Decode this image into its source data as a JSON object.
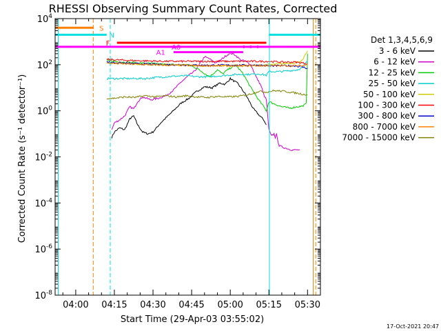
{
  "chart_data": {
    "type": "line",
    "title": "RHESSI Observing Summary Count Rates, Corrected",
    "xlabel": "Start Time (29-Apr-03 03:55:02)",
    "ylabel": "Corrected Count Rate (s⁻¹ detector⁻¹)",
    "x_ticks": [
      "04:00",
      "04:15",
      "04:30",
      "04:45",
      "05:00",
      "05:15",
      "05:30"
    ],
    "x_tick_minutes": [
      5,
      20,
      35,
      50,
      65,
      80,
      95
    ],
    "xlim_minutes": [
      -3,
      100
    ],
    "ylim": [
      1e-08,
      10000.0
    ],
    "yscale": "log",
    "y_ticks": [
      {
        "label": "10",
        "exp": "4",
        "value": 10000.0
      },
      {
        "label": "10",
        "exp": "2",
        "value": 100.0
      },
      {
        "label": "10",
        "exp": "0",
        "value": 1
      },
      {
        "label": "10",
        "exp": "-2",
        "value": 0.01
      },
      {
        "label": "10",
        "exp": "-4",
        "value": 0.0001
      },
      {
        "label": "10",
        "exp": "-6",
        "value": 1e-06
      },
      {
        "label": "10",
        "exp": "-8",
        "value": 1e-08
      }
    ],
    "legend_title": "Det 1,3,4,5,6,9",
    "legend_position": "right",
    "footer_date": "17-Oct-2021 20:47",
    "series": [
      {
        "name": "3 - 6 keV",
        "color": "#000000",
        "x": [
          19,
          20,
          22,
          24,
          26,
          27.5,
          29,
          31,
          33,
          35,
          38,
          42,
          46,
          49,
          52,
          55,
          58,
          61,
          63,
          65,
          68,
          71,
          74,
          76.5,
          78,
          79
        ],
        "y": [
          0.07,
          0.12,
          0.18,
          0.15,
          0.45,
          0.6,
          0.25,
          0.12,
          0.1,
          0.12,
          0.3,
          0.8,
          2.2,
          3.5,
          7,
          11,
          10,
          16,
          14,
          25,
          15,
          5,
          1.2,
          0.6,
          0.4,
          0.25
        ]
      },
      {
        "name": "6 - 12 keV",
        "color": "#cc00cc",
        "x": [
          19,
          20,
          22,
          24,
          26,
          27.5,
          29,
          31,
          34,
          37,
          40,
          43,
          46,
          49,
          51,
          53,
          55,
          57,
          59,
          61,
          63,
          65,
          67,
          69,
          71,
          73,
          75,
          77,
          78,
          79,
          80,
          81,
          82,
          82.5,
          83,
          84,
          86,
          89,
          92
        ],
        "y": [
          0.15,
          0.3,
          0.4,
          0.6,
          1.5,
          1.2,
          2.5,
          4,
          3,
          3.5,
          4.5,
          8,
          18,
          35,
          50,
          100,
          220,
          180,
          120,
          150,
          230,
          320,
          260,
          160,
          140,
          100,
          30,
          12,
          5,
          3,
          0.15,
          0.08,
          0.1,
          0.07,
          0.09,
          0.03,
          0.025,
          0.02,
          0.02
        ]
      },
      {
        "name": "12 - 25 keV",
        "color": "#00cc00",
        "x": [
          17,
          20,
          24,
          28,
          32,
          36,
          40,
          44,
          48,
          51,
          54,
          57,
          60,
          62,
          64,
          67,
          70,
          73,
          76,
          78,
          79,
          80,
          82,
          85,
          88,
          91,
          93,
          94.5,
          95
        ],
        "y": [
          150,
          140,
          130,
          120,
          115,
          110,
          100,
          100,
          100,
          80,
          50,
          30,
          60,
          40,
          60,
          100,
          40,
          10,
          3,
          1.5,
          1,
          2.5,
          2,
          1.5,
          1.3,
          1.5,
          1.6,
          2,
          300
        ]
      },
      {
        "name": "25 - 50 keV",
        "color": "#00cccc",
        "x": [
          17,
          20,
          24,
          28,
          32,
          36,
          40,
          44,
          48,
          52,
          56,
          60,
          64,
          68,
          72,
          76,
          79,
          80,
          84,
          88,
          91,
          93,
          95
        ],
        "y": [
          25,
          25,
          25,
          25,
          25,
          28,
          30,
          32,
          33,
          30,
          30,
          32,
          35,
          38,
          38,
          40,
          35,
          50,
          50,
          55,
          60,
          75,
          150
        ]
      },
      {
        "name": "50 - 100 keV",
        "color": "#cccc00",
        "x": [
          17,
          22,
          28,
          34,
          40,
          46,
          52,
          58,
          64,
          70,
          76,
          80,
          85,
          90,
          93,
          95
        ],
        "y": [
          130,
          120,
          110,
          100,
          100,
          95,
          90,
          90,
          90,
          90,
          95,
          100,
          110,
          120,
          150,
          400
        ]
      },
      {
        "name": "100 - 300 keV",
        "color": "#ff0000",
        "x": [
          17,
          22,
          28,
          34,
          40,
          46,
          52,
          58,
          64,
          70,
          76,
          80,
          85,
          90,
          93,
          95
        ],
        "y": [
          170,
          160,
          150,
          145,
          140,
          140,
          140,
          140,
          140,
          140,
          140,
          140,
          130,
          130,
          120,
          110
        ]
      },
      {
        "name": "300 - 800 keV",
        "color": "#0000cc",
        "x": [
          17,
          22,
          28,
          34,
          40,
          46,
          52,
          58,
          64,
          70,
          76,
          80,
          85,
          90,
          93,
          95
        ],
        "y": [
          130,
          120,
          110,
          105,
          100,
          100,
          95,
          95,
          95,
          95,
          95,
          90,
          90,
          90,
          80,
          70
        ]
      },
      {
        "name": "800 - 7000 keV",
        "color": "#ff8000",
        "x": [
          17,
          22,
          28,
          34,
          40,
          46,
          52,
          58,
          64,
          70,
          76,
          80,
          85,
          90,
          93,
          95
        ],
        "y": [
          115,
          110,
          105,
          100,
          95,
          95,
          90,
          90,
          90,
          90,
          90,
          90,
          90,
          90,
          90,
          100
        ]
      },
      {
        "name": "7000 - 15000 keV",
        "color": "#808000",
        "x": [
          17,
          20,
          24,
          28,
          32,
          36,
          40,
          44,
          48,
          52,
          56,
          60,
          64,
          68,
          72,
          76,
          79,
          82,
          86,
          90,
          94.5,
          95
        ],
        "y": [
          3.5,
          3.5,
          4,
          3.8,
          4.5,
          4,
          4.5,
          4,
          4.5,
          4,
          3.8,
          4.2,
          4,
          4.2,
          5,
          7,
          6.5,
          7.5,
          7,
          6,
          5,
          5
        ]
      }
    ],
    "annotations": [
      {
        "label": "S",
        "color": "#ff8000",
        "x_start": -3,
        "x_end": 12,
        "y": 4000,
        "label_x": 15
      },
      {
        "label": "N",
        "color": "#00e0e0",
        "x_start": -3,
        "x_end": 17,
        "y": 2000,
        "label_x": 19
      },
      {
        "label": "N",
        "color": "#00e0e0",
        "x_start": 80,
        "x_end": 100,
        "y": 2000
      },
      {
        "label": "F",
        "color": "#ff0000",
        "x_start": 21,
        "x_end": 79,
        "y": 900,
        "label_x": 17.5
      },
      {
        "label": "A0",
        "color": "#ff00ff",
        "x_start": -3,
        "x_end": 100,
        "y": 600,
        "label_x": 44
      },
      {
        "label": "A1",
        "color": "#ff00ff",
        "x_start": 43,
        "x_end": 70,
        "y": 350,
        "label_x": 38
      }
    ],
    "vertical_lines": [
      {
        "x": -1.8,
        "color": "#00e0e0",
        "dash": false
      },
      {
        "x": 11.8,
        "color": "#ff8000",
        "dash": true
      },
      {
        "x": 18.4,
        "color": "#00e0e0",
        "dash": true
      },
      {
        "x": 80.2,
        "color": "#00e0e0",
        "dash": false
      },
      {
        "x": 97.2,
        "color": "#ff8000",
        "dash": false
      },
      {
        "x": 98.2,
        "color": "#ff8000",
        "dash": true
      }
    ]
  }
}
